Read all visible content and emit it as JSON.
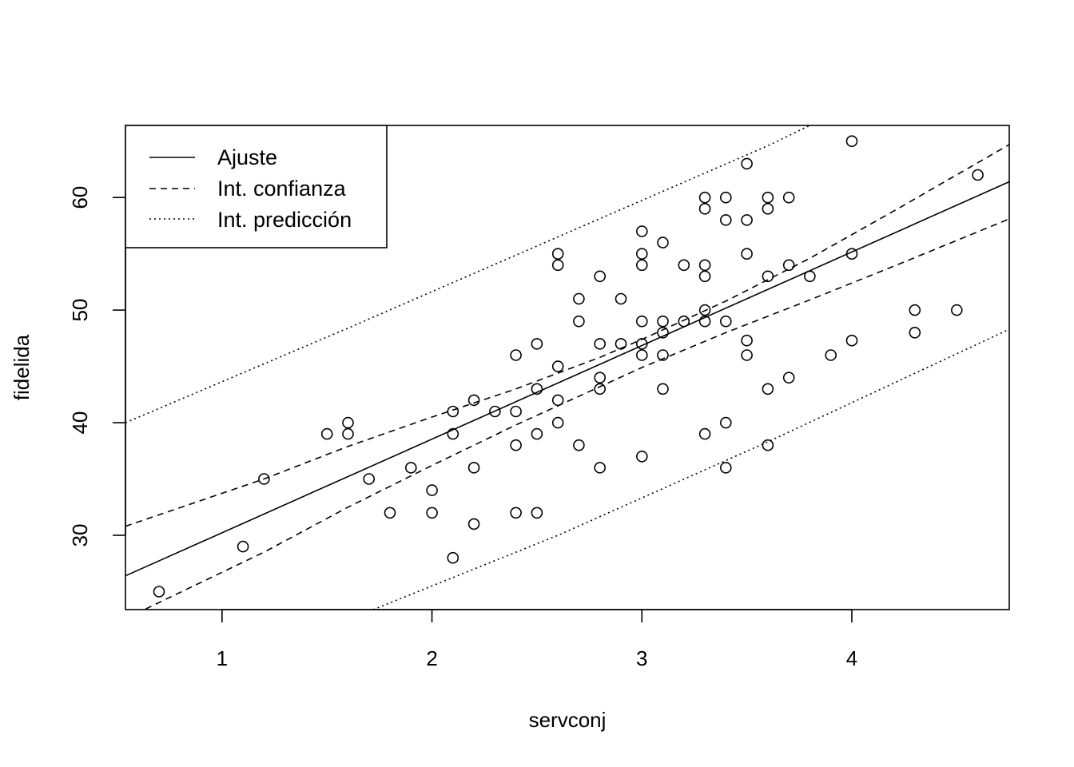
{
  "chart_data": {
    "type": "scatter",
    "title": "",
    "xlabel": "servconj",
    "ylabel": "fidelida",
    "xlim": [
      0.54,
      4.75
    ],
    "ylim": [
      23.4,
      66.4
    ],
    "x_ticks": [
      1,
      2,
      3,
      4
    ],
    "y_ticks": [
      30,
      40,
      50,
      60
    ],
    "grid": false,
    "legend_position": "top-left",
    "legend": [
      {
        "label": "Ajuste",
        "style": "solid"
      },
      {
        "label": "Int. confianza",
        "style": "dashed"
      },
      {
        "label": "Int. predicción",
        "style": "dotted"
      }
    ],
    "points": [
      [
        0.7,
        25
      ],
      [
        1.1,
        29
      ],
      [
        1.2,
        35
      ],
      [
        1.5,
        39
      ],
      [
        1.6,
        40
      ],
      [
        1.6,
        39
      ],
      [
        1.7,
        35
      ],
      [
        1.8,
        32
      ],
      [
        1.9,
        36
      ],
      [
        2.0,
        34
      ],
      [
        2.0,
        32
      ],
      [
        2.1,
        41
      ],
      [
        2.1,
        39
      ],
      [
        2.1,
        28
      ],
      [
        2.2,
        42
      ],
      [
        2.2,
        36
      ],
      [
        2.2,
        31
      ],
      [
        2.3,
        41
      ],
      [
        2.4,
        46
      ],
      [
        2.4,
        41
      ],
      [
        2.4,
        38
      ],
      [
        2.4,
        32
      ],
      [
        2.5,
        47
      ],
      [
        2.5,
        43
      ],
      [
        2.5,
        39
      ],
      [
        2.5,
        32
      ],
      [
        2.6,
        55
      ],
      [
        2.6,
        54
      ],
      [
        2.6,
        45
      ],
      [
        2.6,
        42
      ],
      [
        2.6,
        40
      ],
      [
        2.7,
        51
      ],
      [
        2.7,
        49
      ],
      [
        2.7,
        38
      ],
      [
        2.8,
        53
      ],
      [
        2.8,
        47
      ],
      [
        2.8,
        44
      ],
      [
        2.8,
        43
      ],
      [
        2.8,
        36
      ],
      [
        2.9,
        51
      ],
      [
        2.9,
        47
      ],
      [
        3.0,
        57
      ],
      [
        3.0,
        55
      ],
      [
        3.0,
        54
      ],
      [
        3.0,
        49
      ],
      [
        3.0,
        47
      ],
      [
        3.0,
        46
      ],
      [
        3.0,
        37
      ],
      [
        3.1,
        56
      ],
      [
        3.1,
        49
      ],
      [
        3.1,
        48
      ],
      [
        3.1,
        46
      ],
      [
        3.1,
        43
      ],
      [
        3.2,
        54
      ],
      [
        3.2,
        49
      ],
      [
        3.3,
        60
      ],
      [
        3.3,
        59
      ],
      [
        3.3,
        54
      ],
      [
        3.3,
        53
      ],
      [
        3.3,
        50
      ],
      [
        3.3,
        49
      ],
      [
        3.3,
        39
      ],
      [
        3.4,
        60
      ],
      [
        3.4,
        58
      ],
      [
        3.4,
        49
      ],
      [
        3.4,
        40
      ],
      [
        3.4,
        36
      ],
      [
        3.5,
        63
      ],
      [
        3.5,
        58
      ],
      [
        3.5,
        55
      ],
      [
        3.5,
        47.3
      ],
      [
        3.5,
        46
      ],
      [
        3.6,
        60
      ],
      [
        3.6,
        59
      ],
      [
        3.6,
        53
      ],
      [
        3.6,
        43
      ],
      [
        3.6,
        38
      ],
      [
        3.7,
        60
      ],
      [
        3.7,
        54
      ],
      [
        3.7,
        44
      ],
      [
        3.8,
        53
      ],
      [
        3.9,
        46
      ],
      [
        4.0,
        65
      ],
      [
        4.0,
        55
      ],
      [
        4.0,
        47.3
      ],
      [
        4.3,
        50
      ],
      [
        4.3,
        48
      ],
      [
        4.5,
        50
      ],
      [
        4.6,
        62
      ]
    ],
    "fit": [
      [
        0.54,
        26.4
      ],
      [
        4.75,
        61.4
      ]
    ],
    "conf_upper": [
      [
        0.54,
        30.8
      ],
      [
        1.2,
        35
      ],
      [
        1.6,
        37.9
      ],
      [
        2.0,
        40.5
      ],
      [
        2.4,
        43.0
      ],
      [
        2.8,
        45.8
      ],
      [
        3.0,
        47.4
      ],
      [
        3.4,
        50.8
      ],
      [
        3.8,
        54.6
      ],
      [
        4.2,
        58.8
      ],
      [
        4.75,
        64.7
      ]
    ],
    "conf_lower": [
      [
        0.54,
        22.6
      ],
      [
        1.2,
        28.5
      ],
      [
        1.6,
        32.5
      ],
      [
        2.0,
        36.2
      ],
      [
        2.4,
        39.8
      ],
      [
        2.8,
        43.2
      ],
      [
        3.0,
        44.9
      ],
      [
        3.4,
        48.0
      ],
      [
        3.8,
        50.9
      ],
      [
        4.2,
        53.9
      ],
      [
        4.75,
        58.1
      ]
    ],
    "pred_upper": [
      [
        0.54,
        40.0
      ],
      [
        1.6,
        48.4
      ],
      [
        2.6,
        56.5
      ],
      [
        3.6,
        64.6
      ],
      [
        3.8,
        66.4
      ]
    ],
    "pred_lower": [
      [
        1.72,
        23.4
      ],
      [
        2.6,
        30.0
      ],
      [
        3.6,
        38.3
      ],
      [
        4.75,
        48.3
      ]
    ]
  }
}
